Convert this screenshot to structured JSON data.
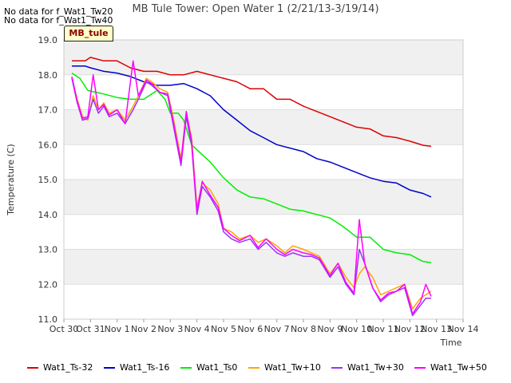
{
  "chart_data": {
    "type": "line",
    "title": "MB Tule Tower: Open Water 1 (2/21/13-3/19/14)",
    "xlabel": "Time",
    "ylabel": "Temperature (C)",
    "ylim": [
      11.0,
      19.0
    ],
    "yticks": [
      "11.0",
      "12.0",
      "13.0",
      "14.0",
      "15.0",
      "16.0",
      "17.0",
      "18.0",
      "19.0"
    ],
    "xlim": [
      0,
      15
    ],
    "xticks": [
      "Oct 30",
      "Oct 31",
      "Nov 1",
      "Nov 2",
      "Nov 3",
      "Nov 4",
      "Nov 5",
      "Nov 6",
      "Nov 7",
      "Nov 8",
      "Nov 9",
      "Nov 10",
      "Nov 11",
      "Nov 12",
      "Nov 13",
      "Nov 14"
    ],
    "grid": true,
    "series": [
      {
        "name": "Wat1_Ts-32",
        "color": "#dd0000",
        "x": [
          0.3,
          0.8,
          1.0,
          1.5,
          2.0,
          2.5,
          3.0,
          3.5,
          4.0,
          4.5,
          5.0,
          5.5,
          6.0,
          6.5,
          7.0,
          7.5,
          8.0,
          8.5,
          9.0,
          9.5,
          10.0,
          10.5,
          11.0,
          11.5,
          12.0,
          12.5,
          13.0,
          13.5,
          13.8
        ],
        "y": [
          18.4,
          18.4,
          18.5,
          18.4,
          18.4,
          18.2,
          18.1,
          18.1,
          18.0,
          18.0,
          18.1,
          18.0,
          17.9,
          17.8,
          17.6,
          17.6,
          17.3,
          17.3,
          17.1,
          16.95,
          16.8,
          16.65,
          16.5,
          16.45,
          16.25,
          16.2,
          16.1,
          15.98,
          15.95
        ]
      },
      {
        "name": "Wat1_Ts-16",
        "color": "#0000cc",
        "x": [
          0.3,
          0.8,
          1.0,
          1.5,
          2.0,
          2.5,
          3.0,
          3.5,
          4.0,
          4.5,
          5.0,
          5.5,
          6.0,
          6.5,
          7.0,
          7.5,
          8.0,
          8.5,
          9.0,
          9.5,
          10.0,
          10.5,
          11.0,
          11.5,
          12.0,
          12.5,
          13.0,
          13.5,
          13.8
        ],
        "y": [
          18.25,
          18.25,
          18.2,
          18.1,
          18.05,
          17.95,
          17.8,
          17.7,
          17.7,
          17.75,
          17.6,
          17.4,
          17.0,
          16.7,
          16.4,
          16.2,
          16.0,
          15.9,
          15.8,
          15.6,
          15.5,
          15.35,
          15.2,
          15.05,
          14.95,
          14.9,
          14.7,
          14.6,
          14.5
        ]
      },
      {
        "name": "Wat1_Ts0",
        "color": "#00ee00",
        "x": [
          0.3,
          0.6,
          0.9,
          1.5,
          2.0,
          2.5,
          3.0,
          3.5,
          3.8,
          4.0,
          4.3,
          4.5,
          4.8,
          5.0,
          5.5,
          6.0,
          6.5,
          7.0,
          7.5,
          8.0,
          8.5,
          9.0,
          9.5,
          10.0,
          10.5,
          11.0,
          11.5,
          12.0,
          12.5,
          13.0,
          13.5,
          13.8
        ],
        "y": [
          18.05,
          17.9,
          17.55,
          17.45,
          17.35,
          17.3,
          17.3,
          17.55,
          17.3,
          16.9,
          16.9,
          16.7,
          16.0,
          15.85,
          15.5,
          15.05,
          14.7,
          14.5,
          14.45,
          14.3,
          14.15,
          14.1,
          14.0,
          13.9,
          13.65,
          13.35,
          13.35,
          13.0,
          12.9,
          12.85,
          12.65,
          12.62
        ]
      },
      {
        "name": "Wat1_Tw+10",
        "color": "#ffa500",
        "x": [
          0.3,
          0.5,
          0.7,
          0.9,
          1.1,
          1.3,
          1.5,
          1.7,
          2.0,
          2.3,
          2.6,
          2.8,
          3.1,
          3.3,
          3.6,
          3.9,
          4.1,
          4.4,
          4.6,
          4.8,
          5.0,
          5.2,
          5.5,
          5.8,
          6.0,
          6.3,
          6.6,
          7.0,
          7.3,
          7.6,
          8.0,
          8.3,
          8.6,
          9.0,
          9.3,
          9.6,
          10.0,
          10.3,
          10.6,
          10.9,
          11.1,
          11.3,
          11.6,
          11.9,
          12.2,
          12.5,
          12.8,
          13.1,
          13.4,
          13.6,
          13.8
        ],
        "y": [
          17.9,
          17.3,
          16.8,
          16.7,
          17.4,
          17.0,
          17.2,
          16.9,
          17.0,
          16.7,
          17.1,
          17.4,
          17.9,
          17.8,
          17.6,
          17.5,
          16.8,
          15.6,
          16.9,
          16.2,
          14.2,
          14.9,
          14.7,
          14.3,
          13.6,
          13.5,
          13.3,
          13.4,
          13.2,
          13.3,
          13.1,
          12.9,
          13.1,
          13.0,
          12.9,
          12.8,
          12.3,
          12.6,
          12.2,
          11.9,
          12.3,
          12.5,
          12.2,
          11.7,
          11.8,
          11.9,
          12.0,
          11.3,
          11.6,
          11.7,
          11.8
        ]
      },
      {
        "name": "Wat1_Tw+30",
        "color": "#9933ff",
        "x": [
          0.3,
          0.5,
          0.7,
          0.9,
          1.1,
          1.3,
          1.5,
          1.7,
          2.0,
          2.3,
          2.6,
          2.8,
          3.1,
          3.3,
          3.6,
          3.9,
          4.1,
          4.4,
          4.6,
          4.8,
          5.0,
          5.2,
          5.5,
          5.8,
          6.0,
          6.3,
          6.6,
          7.0,
          7.3,
          7.6,
          8.0,
          8.3,
          8.6,
          9.0,
          9.3,
          9.6,
          10.0,
          10.3,
          10.6,
          10.9,
          11.1,
          11.3,
          11.6,
          11.9,
          12.2,
          12.5,
          12.8,
          13.1,
          13.4,
          13.6,
          13.8
        ],
        "y": [
          17.9,
          17.2,
          16.7,
          16.75,
          17.3,
          16.9,
          17.1,
          16.8,
          16.9,
          16.6,
          17.0,
          17.3,
          17.8,
          17.7,
          17.5,
          17.4,
          16.6,
          15.4,
          16.8,
          16.0,
          14.0,
          14.8,
          14.5,
          14.1,
          13.5,
          13.3,
          13.2,
          13.3,
          13.0,
          13.2,
          12.9,
          12.8,
          12.9,
          12.8,
          12.8,
          12.7,
          12.2,
          12.5,
          12.0,
          11.7,
          13.0,
          12.6,
          11.9,
          11.5,
          11.7,
          11.8,
          11.9,
          11.1,
          11.4,
          11.6,
          11.6
        ]
      },
      {
        "name": "Wat1_Tw+50",
        "color": "#ff00ff",
        "x": [
          0.3,
          0.5,
          0.7,
          0.9,
          1.1,
          1.3,
          1.5,
          1.7,
          2.0,
          2.3,
          2.6,
          2.8,
          3.1,
          3.3,
          3.6,
          3.9,
          4.1,
          4.4,
          4.6,
          4.8,
          5.0,
          5.2,
          5.5,
          5.8,
          6.0,
          6.3,
          6.6,
          7.0,
          7.3,
          7.6,
          8.0,
          8.3,
          8.6,
          9.0,
          9.3,
          9.6,
          10.0,
          10.3,
          10.6,
          10.9,
          11.1,
          11.3,
          11.6,
          11.9,
          12.2,
          12.5,
          12.8,
          13.1,
          13.4,
          13.6,
          13.8
        ],
        "y": [
          17.95,
          17.25,
          16.75,
          16.8,
          18.0,
          17.0,
          17.15,
          16.85,
          17.0,
          16.6,
          18.4,
          17.4,
          17.85,
          17.75,
          17.5,
          17.45,
          16.7,
          15.5,
          16.95,
          16.1,
          14.1,
          14.95,
          14.55,
          14.2,
          13.6,
          13.4,
          13.25,
          13.4,
          13.05,
          13.3,
          13.0,
          12.85,
          13.0,
          12.9,
          12.85,
          12.75,
          12.25,
          12.6,
          12.05,
          11.75,
          13.85,
          12.6,
          11.9,
          11.55,
          11.75,
          11.8,
          12.0,
          11.15,
          11.5,
          12.0,
          11.65
        ]
      }
    ]
  },
  "nodata_lines": [
    "No data for f_Wat1_Tw20",
    "No data for f_Wat1_Tw40"
  ],
  "badge_label": "MB_tule",
  "legend": [
    {
      "label": "Wat1_Ts-32",
      "color": "#dd0000"
    },
    {
      "label": "Wat1_Ts-16",
      "color": "#0000cc"
    },
    {
      "label": "Wat1_Ts0",
      "color": "#00ee00"
    },
    {
      "label": "Wat1_Tw+10",
      "color": "#ffa500"
    },
    {
      "label": "Wat1_Tw+30",
      "color": "#9933ff"
    },
    {
      "label": "Wat1_Tw+50",
      "color": "#ff00ff"
    }
  ]
}
